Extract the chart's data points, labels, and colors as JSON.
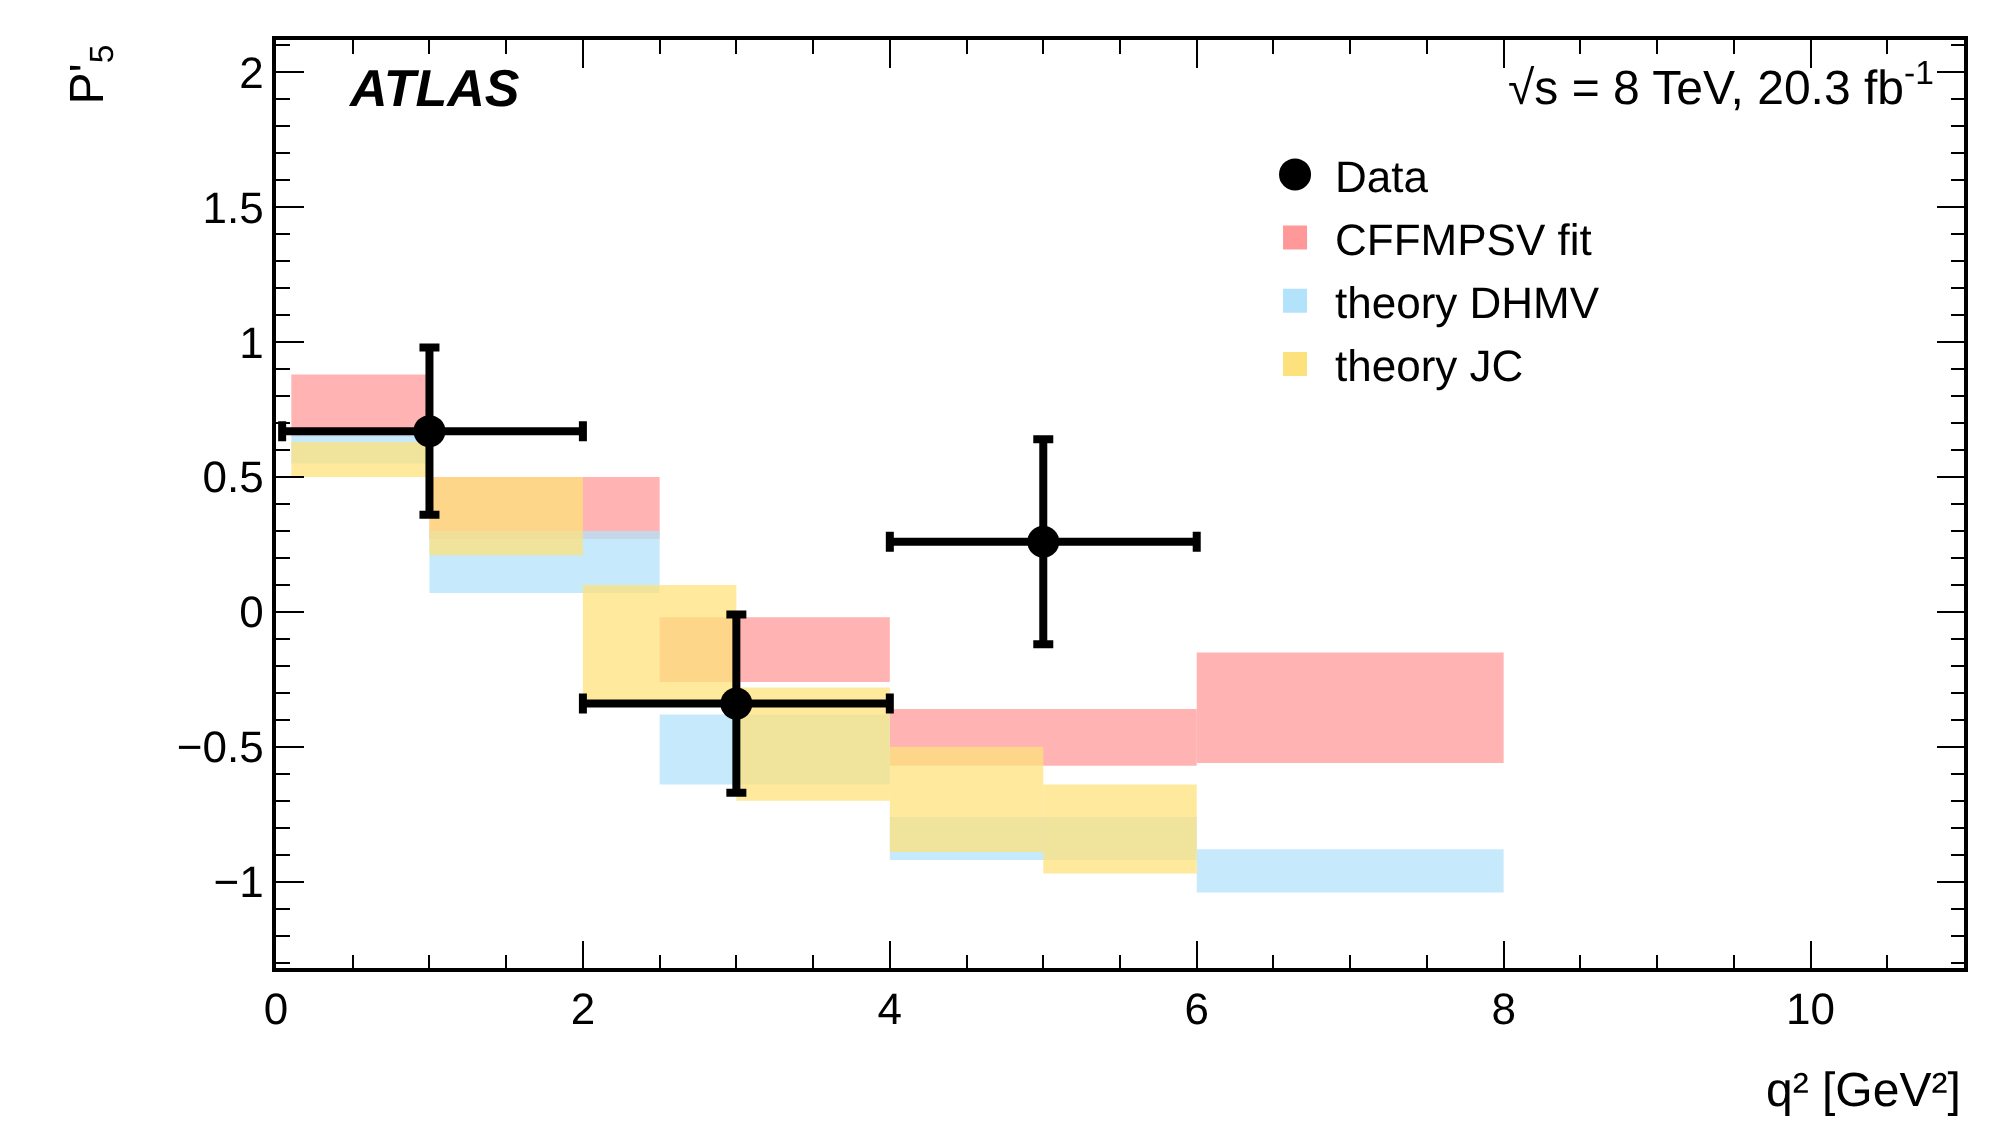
{
  "chart_data": {
    "type": "scatter",
    "xlabel": "q² [GeV²]",
    "ylabel": "P'$_{5}$",
    "annotations": [
      "ATLAS",
      "√s = 8 TeV, 20.3 fb$^{-1}$"
    ],
    "xlim": [
      0,
      11
    ],
    "xticks": [
      0,
      2,
      4,
      6,
      8,
      10
    ],
    "ylim": [
      -1.32,
      2.12
    ],
    "yticks": [
      {
        "value": -1,
        "label": "−1"
      },
      {
        "value": -0.5,
        "label": "−0.5"
      },
      0,
      0.5,
      1,
      1.5,
      2
    ],
    "legend": "top right",
    "series": [
      {
        "name": "CFFMPSV fit",
        "type": "histogram",
        "color": "#ff9999",
        "bins": [
          0.1,
          1,
          2.5,
          4,
          6,
          8
        ],
        "base": [
          0.65,
          0.27,
          -0.26,
          -0.57,
          -0.56
        ],
        "values": [
          0.23,
          0.23,
          0.24,
          0.21,
          0.41
        ]
      },
      {
        "name": "theory DHMV",
        "type": "histogram",
        "color": "#b3e3fb",
        "bins": [
          0.1,
          1,
          2.5,
          4,
          6,
          8
        ],
        "base": [
          0.55,
          0.07,
          -0.64,
          -0.92,
          -1.04
        ],
        "values": [
          0.11,
          0.23,
          0.26,
          0.16,
          0.16
        ]
      },
      {
        "name": "theory JC",
        "type": "histogram",
        "color": "#fde17c",
        "bins": [
          0.1,
          1,
          2,
          3,
          4,
          5,
          6
        ],
        "base": [
          0.5,
          0.21,
          -0.33,
          -0.7,
          -0.89,
          -0.97
        ],
        "values": [
          0.13,
          0.29,
          0.43,
          0.42,
          0.39,
          0.33
        ]
      },
      {
        "name": "Data",
        "color": "#000000",
        "marker": "circle",
        "x": [
          1,
          3,
          5
        ],
        "values": [
          0.67,
          -0.34,
          0.26
        ],
        "errors": [
          0.31,
          0.33,
          0.38
        ],
        "xerrors": [
          [
            0.04,
            2
          ],
          [
            2,
            4
          ],
          [
            4,
            6
          ]
        ]
      }
    ]
  }
}
